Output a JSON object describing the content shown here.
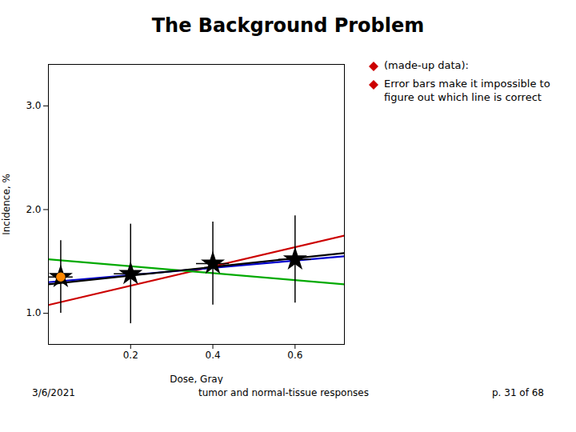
{
  "chart_data": {
    "type": "line",
    "title": "The Background Problem",
    "xlabel": "Dose, Gray",
    "ylabel": "Incidence, %",
    "xlim": [
      0.0,
      0.72
    ],
    "ylim": [
      0.7,
      3.4
    ],
    "xticks": [
      0.2,
      0.4,
      0.6
    ],
    "yticks": [
      1,
      2,
      3
    ],
    "series": [
      {
        "type": "line",
        "color": "#cc0000",
        "x": [
          0.0,
          0.72
        ],
        "values": [
          1.08,
          1.75
        ]
      },
      {
        "type": "line",
        "color": "#0000cc",
        "x": [
          0.0,
          0.72
        ],
        "values": [
          1.3,
          1.55
        ]
      },
      {
        "type": "line",
        "color": "#00aa00",
        "x": [
          0.0,
          0.72
        ],
        "values": [
          1.52,
          1.28
        ]
      },
      {
        "type": "line",
        "color": "#000000",
        "x": [
          0.0,
          0.72
        ],
        "values": [
          1.28,
          1.58
        ]
      },
      {
        "type": "scatter",
        "marker": "star",
        "color": "#000000",
        "x": [
          0.03,
          0.2,
          0.4,
          0.6
        ],
        "values": [
          1.35,
          1.38,
          1.48,
          1.52
        ],
        "yerr": [
          0.35,
          0.48,
          0.4,
          0.42
        ],
        "xerr": [
          0.03,
          0.04,
          0.04,
          0.04
        ]
      },
      {
        "type": "scatter",
        "marker": "circle",
        "color": "#ff8800",
        "x": [
          0.03
        ],
        "values": [
          1.35
        ]
      }
    ],
    "legend": "upper right",
    "annotations": [
      {
        "text": "(made-up data):",
        "marker": "diamond",
        "color": "#cc0000"
      },
      {
        "text": "Error bars make it impossible to\nfigure out which line is correct",
        "marker": "diamond",
        "color": "#cc0000"
      }
    ],
    "footer": [
      "3/6/2021",
      "tumor and normal-tissue responses",
      "p. 31 of 68"
    ]
  }
}
